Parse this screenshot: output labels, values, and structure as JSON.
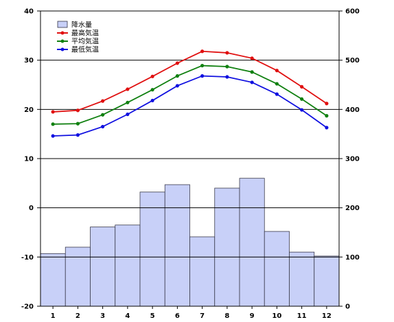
{
  "chart_data": {
    "type": "bar+line",
    "categories": [
      "1",
      "2",
      "3",
      "4",
      "5",
      "6",
      "7",
      "8",
      "9",
      "10",
      "11",
      "12"
    ],
    "left_axis": {
      "ticks": [
        40,
        30,
        20,
        10,
        0,
        -10,
        -20
      ],
      "ylim": [
        -20,
        40
      ]
    },
    "right_axis": {
      "ticks": [
        600,
        500,
        400,
        300,
        200,
        100,
        0
      ],
      "ylim": [
        0,
        600
      ]
    },
    "precipitation": {
      "name": "降水量",
      "axis": "right",
      "values": [
        107,
        120,
        161,
        165,
        232,
        247,
        141,
        240,
        260,
        152,
        110,
        102
      ],
      "color": "#c8d0f8"
    },
    "series": [
      {
        "name": "最高気温",
        "axis": "left",
        "color": "#e01010",
        "values": [
          19.5,
          19.8,
          21.7,
          24.1,
          26.7,
          29.4,
          31.8,
          31.5,
          30.4,
          27.9,
          24.6,
          21.2
        ]
      },
      {
        "name": "平均気温",
        "axis": "left",
        "color": "#108010",
        "values": [
          17.0,
          17.1,
          18.9,
          21.4,
          24.0,
          26.8,
          28.9,
          28.7,
          27.6,
          25.2,
          22.1,
          18.7
        ]
      },
      {
        "name": "最低気温",
        "axis": "left",
        "color": "#1010e0",
        "values": [
          14.6,
          14.8,
          16.5,
          19.0,
          21.8,
          24.8,
          26.8,
          26.6,
          25.5,
          23.1,
          19.9,
          16.3
        ]
      }
    ],
    "legend": "top-left",
    "grid": "horizontal at major ticks"
  }
}
